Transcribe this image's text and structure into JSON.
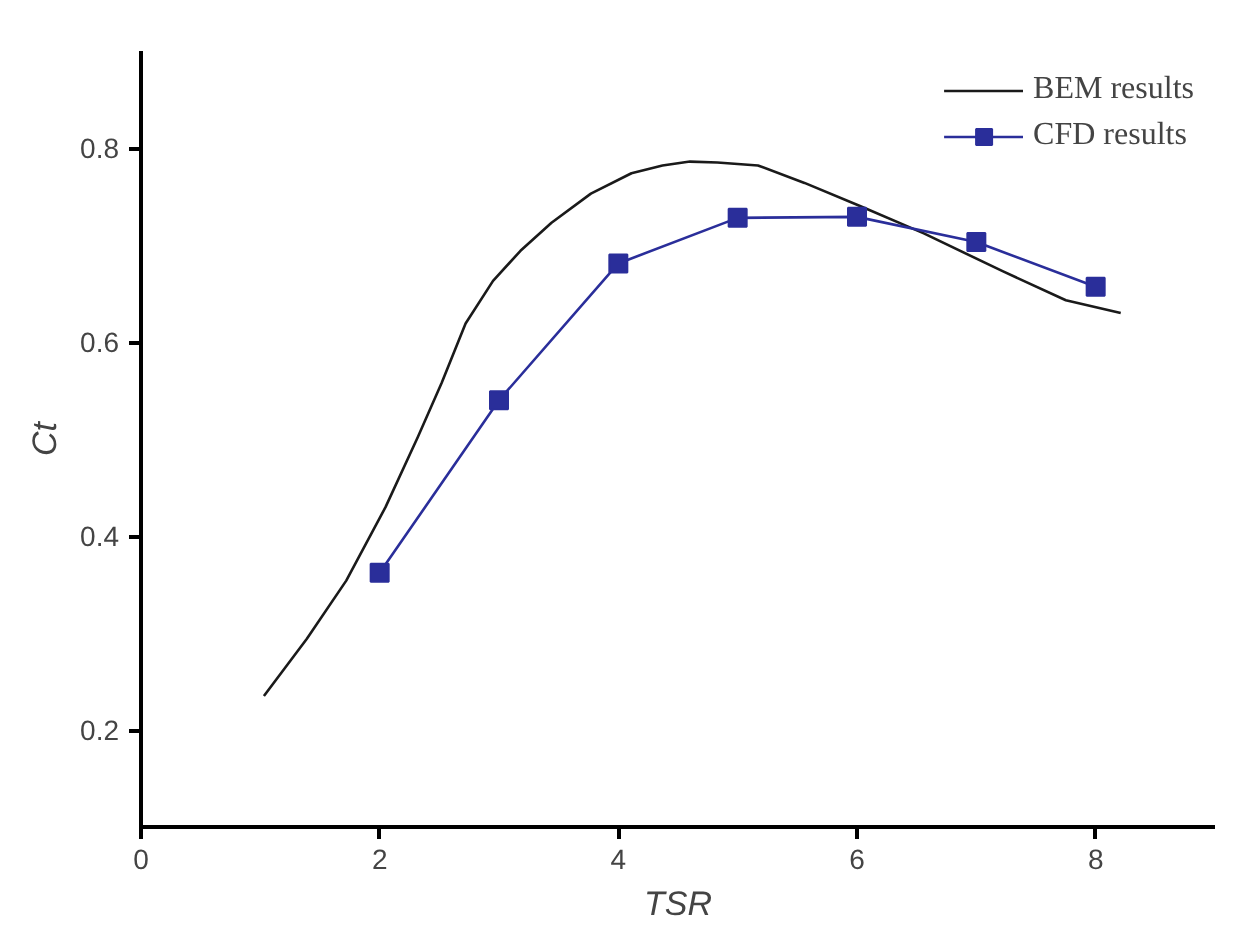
{
  "chart_data": {
    "type": "line",
    "xlabel": "TSR",
    "ylabel": "Ct",
    "xlim": [
      0,
      9
    ],
    "ylim": [
      0.1,
      0.9
    ],
    "xticks": [
      0,
      2,
      4,
      6,
      8
    ],
    "yticks": [
      0.2,
      0.4,
      0.6,
      0.8
    ],
    "grid": false,
    "legend": "top right",
    "series": [
      {
        "name": "BEM results",
        "color": "#1a1a1a",
        "marker": "none",
        "x": [
          1.03,
          1.39,
          1.72,
          2.05,
          2.32,
          2.52,
          2.72,
          2.95,
          3.18,
          3.44,
          3.77,
          4.11,
          4.37,
          4.6,
          4.83,
          5.17,
          5.56,
          6.03,
          6.56,
          7.22,
          7.75,
          8.21
        ],
        "values": [
          0.235,
          0.294,
          0.354,
          0.43,
          0.502,
          0.558,
          0.619,
          0.663,
          0.694,
          0.723,
          0.753,
          0.774,
          0.782,
          0.786,
          0.785,
          0.782,
          0.764,
          0.74,
          0.712,
          0.673,
          0.643,
          0.63
        ]
      },
      {
        "name": "CFD results",
        "color": "#2a2e9a",
        "marker": "square",
        "x": [
          2,
          3,
          4,
          5,
          6,
          7,
          8
        ],
        "values": [
          0.362,
          0.54,
          0.681,
          0.728,
          0.729,
          0.703,
          0.657
        ]
      }
    ]
  }
}
